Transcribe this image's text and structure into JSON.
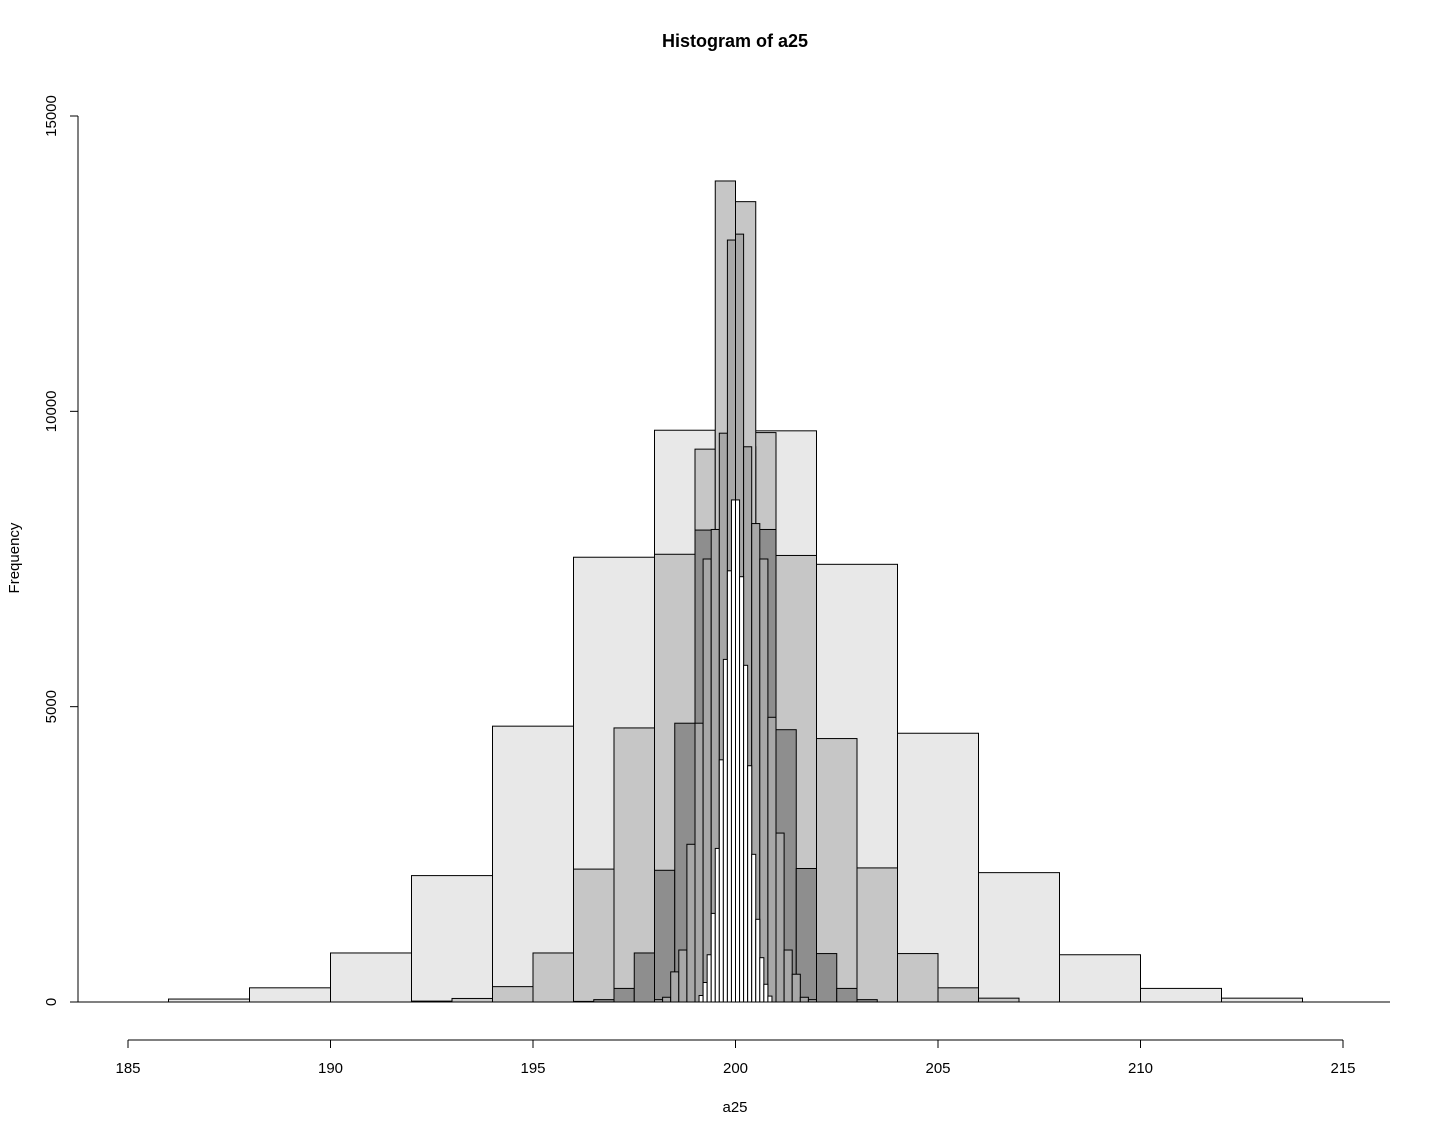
{
  "chart_data": {
    "type": "bar",
    "title": "Histogram of a25",
    "xlabel": "a25",
    "ylabel": "Frequency",
    "xlim": [
      185,
      215
    ],
    "ylim": [
      0,
      15000
    ],
    "x_ticks": [
      185,
      190,
      195,
      200,
      205,
      210,
      215
    ],
    "y_ticks": [
      0,
      5000,
      10000,
      15000
    ],
    "grid": false,
    "legend": "none",
    "layers": [
      {
        "name": "",
        "binwidth": 2,
        "fill": "#e8e8e8",
        "bins": [
          {
            "x0": 186,
            "x1": 188,
            "count": 50
          },
          {
            "x0": 188,
            "x1": 190,
            "count": 240
          },
          {
            "x0": 190,
            "x1": 192,
            "count": 830
          },
          {
            "x0": 192,
            "x1": 194,
            "count": 2140
          },
          {
            "x0": 194,
            "x1": 196,
            "count": 4670
          },
          {
            "x0": 196,
            "x1": 198,
            "count": 7530
          },
          {
            "x0": 198,
            "x1": 200,
            "count": 9680
          },
          {
            "x0": 200,
            "x1": 202,
            "count": 9670
          },
          {
            "x0": 202,
            "x1": 204,
            "count": 7410
          },
          {
            "x0": 204,
            "x1": 206,
            "count": 4550
          },
          {
            "x0": 206,
            "x1": 208,
            "count": 2190
          },
          {
            "x0": 208,
            "x1": 210,
            "count": 800
          },
          {
            "x0": 210,
            "x1": 212,
            "count": 230
          },
          {
            "x0": 212,
            "x1": 214,
            "count": 65
          }
        ]
      },
      {
        "name": "",
        "binwidth": 1,
        "fill": "#c6c6c6",
        "bins": [
          {
            "x0": 192,
            "x1": 193,
            "count": 15
          },
          {
            "x0": 193,
            "x1": 194,
            "count": 60
          },
          {
            "x0": 194,
            "x1": 195,
            "count": 260
          },
          {
            "x0": 195,
            "x1": 196,
            "count": 830
          },
          {
            "x0": 196,
            "x1": 197,
            "count": 2250
          },
          {
            "x0": 197,
            "x1": 198,
            "count": 4640
          },
          {
            "x0": 198,
            "x1": 199,
            "count": 7580
          },
          {
            "x0": 199,
            "x1": 200,
            "count": 9360
          },
          {
            "x0": 200,
            "x1": 201,
            "count": 9640
          },
          {
            "x0": 201,
            "x1": 202,
            "count": 7560
          },
          {
            "x0": 202,
            "x1": 203,
            "count": 4460
          },
          {
            "x0": 203,
            "x1": 204,
            "count": 2270
          },
          {
            "x0": 204,
            "x1": 205,
            "count": 820
          },
          {
            "x0": 205,
            "x1": 206,
            "count": 240
          },
          {
            "x0": 206,
            "x1": 207,
            "count": 65
          }
        ]
      },
      {
        "name": "",
        "binwidth": 0.5,
        "fill": "#8e8e8e",
        "bins": [
          {
            "x0": 196,
            "x1": 196.5,
            "count": 10
          },
          {
            "x0": 196.5,
            "x1": 197,
            "count": 40
          },
          {
            "x0": 197,
            "x1": 197.5,
            "count": 230
          },
          {
            "x0": 197.5,
            "x1": 198,
            "count": 830
          },
          {
            "x0": 198,
            "x1": 198.5,
            "count": 2230
          },
          {
            "x0": 198.5,
            "x1": 199,
            "count": 4720
          },
          {
            "x0": 199,
            "x1": 199.5,
            "count": 7990
          },
          {
            "x0": 199.5,
            "x1": 200,
            "count": 9680
          },
          {
            "x0": 200,
            "x1": 200.5,
            "count": 9400
          },
          {
            "x0": 200.5,
            "x1": 201,
            "count": 8000
          },
          {
            "x0": 201,
            "x1": 201.5,
            "count": 4610
          },
          {
            "x0": 201.5,
            "x1": 202,
            "count": 2260
          },
          {
            "x0": 202,
            "x1": 202.5,
            "count": 820
          },
          {
            "x0": 202.5,
            "x1": 203,
            "count": 230
          },
          {
            "x0": 203,
            "x1": 203.5,
            "count": 40
          }
        ]
      },
      {
        "name": "",
        "binwidth": 0.5,
        "fill": "#c6c6c6",
        "bins": [
          {
            "x0": 199.5,
            "x1": 200,
            "count": 13900
          },
          {
            "x0": 200,
            "x1": 200.5,
            "count": 13550
          }
        ]
      },
      {
        "name": "",
        "binwidth": 0.2,
        "fill": "#a8a8a8",
        "bins": [
          {
            "x0": 198.0,
            "x1": 198.2,
            "count": 40
          },
          {
            "x0": 198.2,
            "x1": 198.4,
            "count": 80
          },
          {
            "x0": 198.4,
            "x1": 198.6,
            "count": 510
          },
          {
            "x0": 198.6,
            "x1": 198.8,
            "count": 880
          },
          {
            "x0": 198.8,
            "x1": 199.0,
            "count": 2670
          },
          {
            "x0": 199.0,
            "x1": 199.2,
            "count": 4720
          },
          {
            "x0": 199.2,
            "x1": 199.4,
            "count": 7500
          },
          {
            "x0": 199.4,
            "x1": 199.6,
            "count": 8000
          },
          {
            "x0": 199.6,
            "x1": 199.8,
            "count": 9630
          },
          {
            "x0": 199.8,
            "x1": 200.0,
            "count": 12900
          },
          {
            "x0": 200.0,
            "x1": 200.2,
            "count": 13000
          },
          {
            "x0": 200.2,
            "x1": 200.4,
            "count": 9400
          },
          {
            "x0": 200.4,
            "x1": 200.6,
            "count": 8100
          },
          {
            "x0": 200.6,
            "x1": 200.8,
            "count": 7500
          },
          {
            "x0": 200.8,
            "x1": 201.0,
            "count": 4820
          },
          {
            "x0": 201.0,
            "x1": 201.2,
            "count": 2860
          },
          {
            "x0": 201.2,
            "x1": 201.4,
            "count": 880
          },
          {
            "x0": 201.4,
            "x1": 201.6,
            "count": 470
          },
          {
            "x0": 201.6,
            "x1": 201.8,
            "count": 80
          },
          {
            "x0": 201.8,
            "x1": 202.0,
            "count": 40
          }
        ]
      },
      {
        "name": "",
        "binwidth": 0.1,
        "fill": "#ffffff",
        "bins": [
          {
            "x0": 199.1,
            "x1": 199.2,
            "count": 110
          },
          {
            "x0": 199.2,
            "x1": 199.3,
            "count": 330
          },
          {
            "x0": 199.3,
            "x1": 199.4,
            "count": 800
          },
          {
            "x0": 199.4,
            "x1": 199.5,
            "count": 1500
          },
          {
            "x0": 199.5,
            "x1": 199.6,
            "count": 2600
          },
          {
            "x0": 199.6,
            "x1": 199.7,
            "count": 4100
          },
          {
            "x0": 199.7,
            "x1": 199.8,
            "count": 5800
          },
          {
            "x0": 199.8,
            "x1": 199.9,
            "count": 7300
          },
          {
            "x0": 199.9,
            "x1": 200.0,
            "count": 8500
          },
          {
            "x0": 200.0,
            "x1": 200.1,
            "count": 8500
          },
          {
            "x0": 200.1,
            "x1": 200.2,
            "count": 7200
          },
          {
            "x0": 200.2,
            "x1": 200.3,
            "count": 5700
          },
          {
            "x0": 200.3,
            "x1": 200.4,
            "count": 4000
          },
          {
            "x0": 200.4,
            "x1": 200.5,
            "count": 2500
          },
          {
            "x0": 200.5,
            "x1": 200.6,
            "count": 1400
          },
          {
            "x0": 200.6,
            "x1": 200.7,
            "count": 750
          },
          {
            "x0": 200.7,
            "x1": 200.8,
            "count": 300
          },
          {
            "x0": 200.8,
            "x1": 200.9,
            "count": 100
          }
        ]
      }
    ]
  }
}
